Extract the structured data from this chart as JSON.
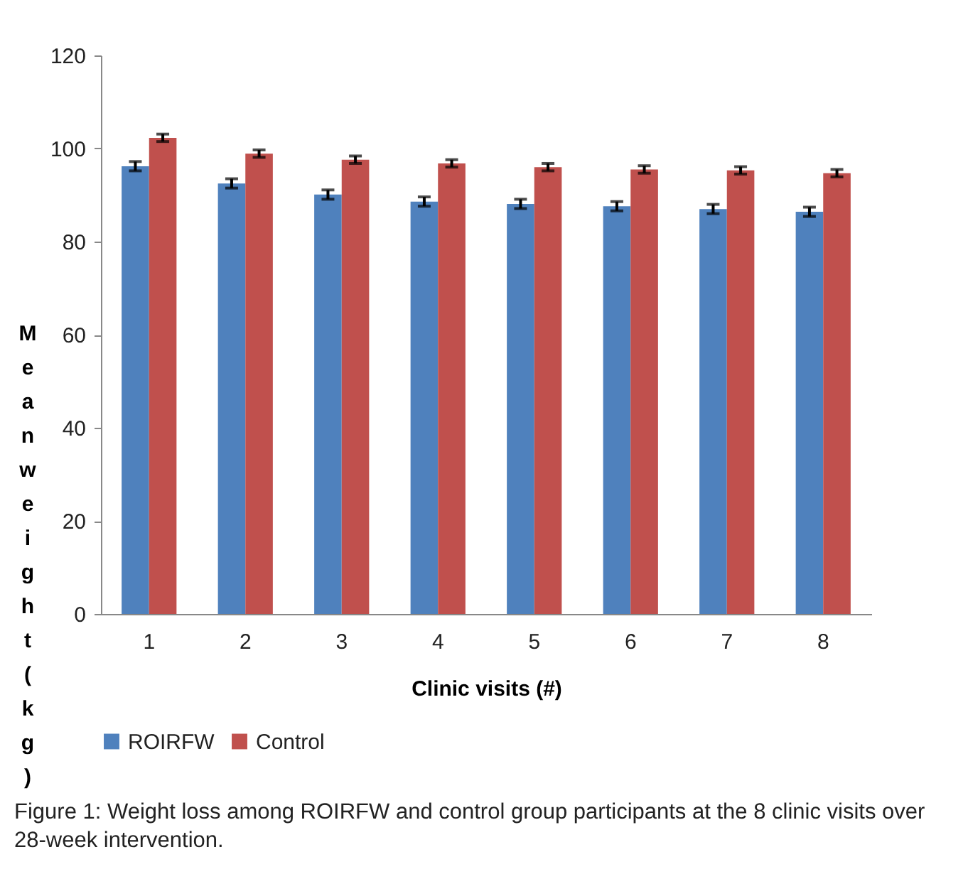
{
  "chart_data": {
    "type": "bar",
    "xlabel": "Clinic visits (#)",
    "ylabel": "Mean weight (kg)",
    "categories": [
      "1",
      "2",
      "3",
      "4",
      "5",
      "6",
      "7",
      "8"
    ],
    "series": [
      {
        "name": "ROIRFW",
        "color": "#4f81bd",
        "values": [
          96.2,
          92.5,
          90.1,
          88.6,
          88.1,
          87.6,
          87.0,
          86.4
        ],
        "errors": [
          1,
          1,
          1,
          1,
          1,
          1,
          1,
          1
        ]
      },
      {
        "name": "Control",
        "color": "#c0504d",
        "values": [
          102.3,
          98.9,
          97.6,
          96.8,
          96.0,
          95.5,
          95.3,
          94.7
        ],
        "errors": [
          0.8,
          0.8,
          0.8,
          0.8,
          0.8,
          0.8,
          0.8,
          0.8
        ]
      }
    ],
    "ylim": [
      0,
      120
    ],
    "yticks": [
      0,
      20,
      40,
      60,
      80,
      100,
      120
    ],
    "grid": false,
    "legend": "bottom",
    "annotations": [
      "Figure 1: Weight loss among ROIRFW and control group participants at the 8 clinic visits over 28-week intervention."
    ]
  }
}
